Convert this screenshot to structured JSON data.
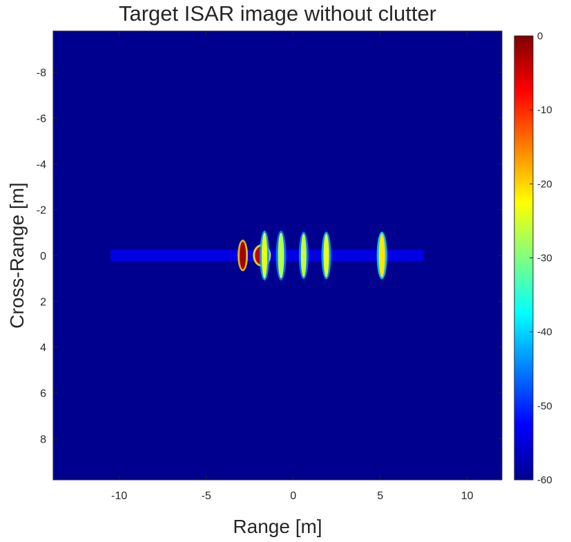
{
  "chart_data": {
    "type": "heatmap",
    "title": "Target ISAR image without clutter",
    "xlabel": "Range [m]",
    "ylabel": "Cross-Range [m]",
    "xlim": [
      -13.8,
      12.0
    ],
    "ylim": [
      -9.8,
      9.8
    ],
    "y_reversed": true,
    "x_ticks": [
      "-10",
      "-5",
      "0",
      "5",
      "10"
    ],
    "x_tick_values": [
      -10,
      -5,
      0,
      5,
      10
    ],
    "y_ticks": [
      "-8",
      "-6",
      "-4",
      "-2",
      "0",
      "2",
      "4",
      "6",
      "8"
    ],
    "y_tick_values": [
      -8,
      -6,
      -4,
      -2,
      0,
      2,
      4,
      6,
      8
    ],
    "colormap": "jet",
    "colorbar": {
      "range": [
        -60,
        0
      ],
      "ticks": [
        "0",
        "-10",
        "-20",
        "-30",
        "-40",
        "-50",
        "-60"
      ],
      "tick_values": [
        0,
        -10,
        -20,
        -30,
        -40,
        -50,
        -60
      ]
    },
    "background_db": -60,
    "range_sidelobe_band": {
      "x": [
        -10.5,
        7.5
      ],
      "cross_range": [
        -0.25,
        0.25
      ],
      "db": -53
    },
    "scatterers": [
      {
        "range": -2.9,
        "cross_range": 0.0,
        "db": -2,
        "halfwidth": 0.18,
        "halfheight": 0.6
      },
      {
        "range": -1.8,
        "cross_range": 0.0,
        "db": -4,
        "halfwidth": 0.4,
        "halfheight": 0.4
      },
      {
        "range": -1.65,
        "cross_range": 0.0,
        "db": -24,
        "halfwidth": 0.16,
        "halfheight": 1.0
      },
      {
        "range": -0.7,
        "cross_range": 0.0,
        "db": -27,
        "halfwidth": 0.18,
        "halfheight": 1.0
      },
      {
        "range": 0.6,
        "cross_range": 0.0,
        "db": -26,
        "halfwidth": 0.16,
        "halfheight": 0.95
      },
      {
        "range": 1.9,
        "cross_range": 0.0,
        "db": -24,
        "halfwidth": 0.16,
        "halfheight": 0.95
      },
      {
        "range": 5.1,
        "cross_range": 0.0,
        "db": -21,
        "halfwidth": 0.18,
        "halfheight": 0.95
      }
    ]
  }
}
